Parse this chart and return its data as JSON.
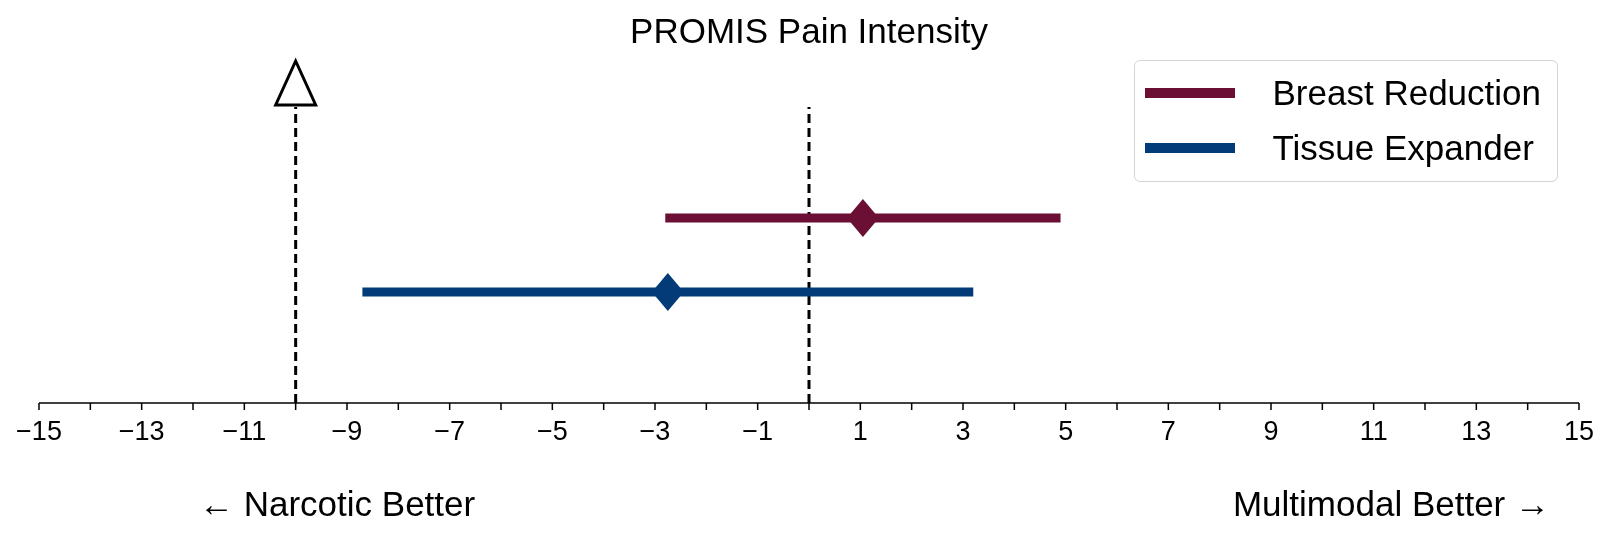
{
  "chart_data": {
    "type": "scatter",
    "title": "PROMIS Pain Intensity",
    "orientation": "horizontal",
    "categories": [
      null,
      null,
      null,
      null
    ],
    "series": [
      {
        "name": "Breast Reduction",
        "color": "#6b0f35",
        "values": [
          null,
          1.05,
          null,
          null
        ],
        "errors": [
          null,
          [
            -2.8,
            4.9
          ],
          null,
          null
        ]
      },
      {
        "name": "Tissue Expander",
        "color": "#023b78",
        "values": [
          null,
          null,
          -2.75,
          null
        ],
        "errors": [
          null,
          null,
          [
            -8.7,
            3.2
          ],
          null
        ]
      }
    ],
    "xlim": [
      -15,
      15
    ],
    "xticks": [
      {
        "value": -15,
        "label": "−15"
      },
      {
        "value": -14,
        "label": null
      },
      {
        "value": -13,
        "label": "−13"
      },
      {
        "value": -12,
        "label": null
      },
      {
        "value": -11,
        "label": "−11"
      },
      {
        "value": -10,
        "label": null
      },
      {
        "value": -9,
        "label": "−9"
      },
      {
        "value": -8,
        "label": null
      },
      {
        "value": -7,
        "label": "−7"
      },
      {
        "value": -6,
        "label": null
      },
      {
        "value": -5,
        "label": "−5"
      },
      {
        "value": -4,
        "label": null
      },
      {
        "value": -3,
        "label": "−3"
      },
      {
        "value": -2,
        "label": null
      },
      {
        "value": -1,
        "label": "−1"
      },
      {
        "value": 0,
        "label": null
      },
      1,
      {
        "value": 2,
        "label": null
      },
      3,
      {
        "value": 4,
        "label": null
      },
      5,
      {
        "value": 6,
        "label": null
      },
      7,
      {
        "value": 8,
        "label": null
      },
      9,
      {
        "value": 10,
        "label": null
      },
      11,
      {
        "value": 12,
        "label": null
      },
      13,
      {
        "value": 14,
        "label": null
      },
      15
    ],
    "tick_labels": "x",
    "marker": "diamond",
    "legend": "top right",
    "ref_lines": [
      {
        "axis": "x",
        "value": -10,
        "color": "#000000",
        "line_style": "dashed"
      },
      {
        "axis": "x",
        "value": 0,
        "color": "#000000",
        "line_style": "dashed"
      }
    ],
    "annotations": [
      "← Narcotic Better",
      "Multimodal Better →"
    ]
  }
}
